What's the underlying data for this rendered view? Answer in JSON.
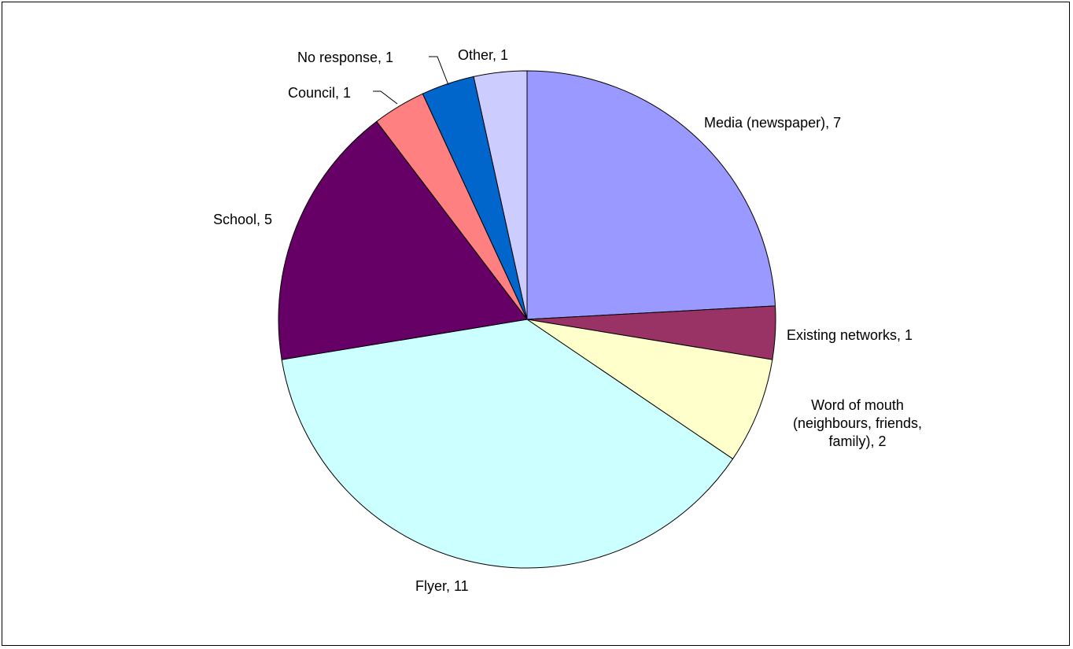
{
  "chart_data": {
    "type": "pie",
    "start_angle": "12 o'clock",
    "direction": "clockwise",
    "legend": "none",
    "slices": [
      {
        "label": "Media (newspaper), 7",
        "value": 7,
        "color": "#9999ff"
      },
      {
        "label": "Existing networks, 1",
        "value": 1,
        "color": "#993366"
      },
      {
        "label": "Word of mouth (neighbours, friends, family), 2",
        "value": 2,
        "color": "#ffffcc"
      },
      {
        "label": "Flyer, 11",
        "value": 11,
        "color": "#ccffff"
      },
      {
        "label": "School, 5",
        "value": 5,
        "color": "#660066"
      },
      {
        "label": "Council, 1",
        "value": 1,
        "color": "#ff8080"
      },
      {
        "label": "No response, 1",
        "value": 1,
        "color": "#0066cc"
      },
      {
        "label": "Other, 1",
        "value": 1,
        "color": "#ccccff"
      }
    ]
  }
}
